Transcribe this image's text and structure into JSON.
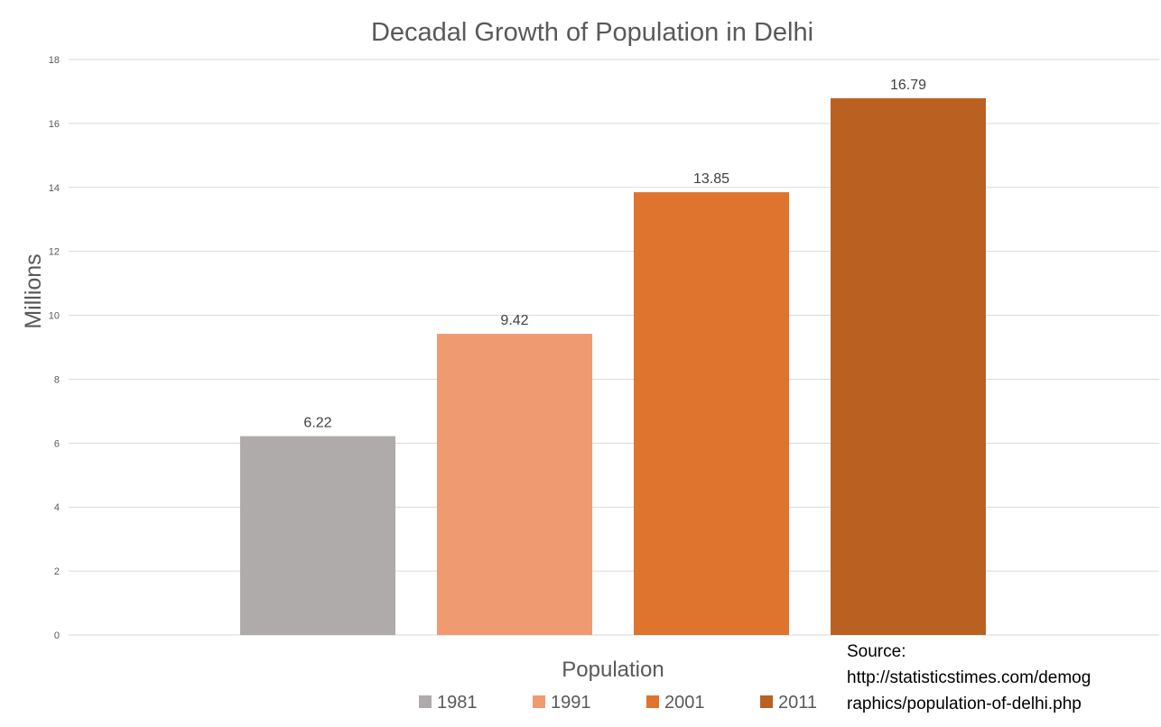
{
  "chart_data": {
    "type": "bar",
    "title": "Decadal Growth of Population in Delhi",
    "xlabel": "Population",
    "ylabel": "Millions",
    "ylim": [
      0,
      18
    ],
    "yticks": [
      0,
      2,
      4,
      6,
      8,
      10,
      12,
      14,
      16,
      18
    ],
    "grid": true,
    "legend_position": "bottom",
    "series": [
      {
        "name": "1981",
        "value": 6.22,
        "label": "6.22",
        "color": "#afabab"
      },
      {
        "name": "1991",
        "value": 9.42,
        "label": "9.42",
        "color": "#f09a72"
      },
      {
        "name": "2001",
        "value": 13.85,
        "label": "13.85",
        "color": "#de742e"
      },
      {
        "name": "2011",
        "value": 16.79,
        "label": "16.79",
        "color": "#ba6122"
      }
    ]
  },
  "source": {
    "line1": "Source:",
    "line2": "http://statisticstimes.com/demog",
    "line3": "raphics/population-of-delhi.php"
  },
  "colors": {
    "grid": "#d9d9d9",
    "axis_text": "#595959",
    "title_text": "#595959"
  }
}
